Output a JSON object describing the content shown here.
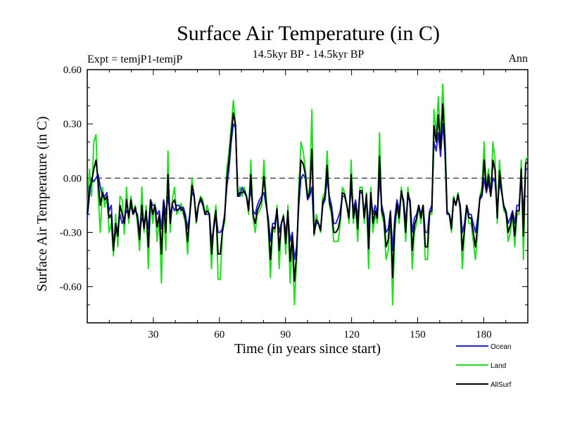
{
  "chart_data": {
    "type": "line",
    "title": "Surface Air Temperature (in C)",
    "subtitle": "14.5kyr BP - 14.5kyr BP",
    "left_annotation": "Expt = temjP1-temjP",
    "right_annotation": "Ann",
    "xlabel": "Time (in years since start)",
    "ylabel": "Surface Air Temperature (in C)",
    "xlim": [
      0,
      200
    ],
    "ylim": [
      -0.8,
      0.6
    ],
    "xticks": [
      30,
      60,
      90,
      120,
      150,
      180
    ],
    "xtick_labels": [
      "30",
      "60",
      "90",
      "120",
      "150",
      "180"
    ],
    "yticks": [
      0.6,
      0.3,
      0.0,
      -0.3,
      -0.6
    ],
    "ytick_labels": [
      "0.60",
      "0.30",
      "0.00",
      "-0.30",
      "-0.60"
    ],
    "zero_line": "dashed",
    "legend_position": "bottom-right",
    "series": [
      {
        "name": "Land",
        "color": "#22dd22",
        "values": [
          -0.18,
          0.05,
          -0.1,
          0.2,
          0.24,
          -0.1,
          -0.3,
          -0.05,
          -0.16,
          -0.1,
          -0.3,
          -0.25,
          -0.43,
          -0.2,
          -0.38,
          -0.1,
          -0.12,
          -0.31,
          -0.05,
          -0.25,
          -0.1,
          -0.2,
          -0.15,
          -0.25,
          -0.4,
          -0.05,
          -0.3,
          -0.15,
          -0.5,
          -0.12,
          -0.25,
          -0.14,
          -0.35,
          -0.22,
          -0.58,
          -0.15,
          -0.4,
          0.15,
          -0.3,
          -0.12,
          -0.05,
          -0.2,
          -0.18,
          -0.14,
          -0.2,
          -0.25,
          -0.42,
          -0.2,
          0.0,
          -0.1,
          -0.25,
          -0.15,
          -0.1,
          -0.12,
          -0.2,
          -0.15,
          -0.2,
          -0.5,
          -0.25,
          -0.15,
          -0.56,
          -0.56,
          -0.3,
          -0.24,
          0.05,
          0.15,
          0.28,
          0.43,
          0.3,
          -0.1,
          -0.05,
          -0.1,
          -0.05,
          -0.1,
          -0.2,
          0.1,
          -0.22,
          -0.3,
          -0.2,
          -0.18,
          -0.15,
          0.1,
          -0.1,
          -0.28,
          -0.55,
          -0.28,
          -0.3,
          -0.15,
          -0.5,
          -0.25,
          -0.2,
          -0.42,
          -0.15,
          -0.58,
          -0.35,
          -0.7,
          -0.45,
          -0.05,
          0.2,
          0.15,
          0.05,
          -0.1,
          -0.05,
          0.38,
          -0.32,
          -0.2,
          -0.25,
          -0.3,
          -0.1,
          -0.08,
          0.15,
          -0.15,
          -0.2,
          -0.35,
          -0.35,
          -0.35,
          -0.25,
          -0.05,
          -0.08,
          -0.15,
          -0.25,
          0.1,
          -0.25,
          -0.15,
          -0.35,
          -0.05,
          -0.05,
          -0.25,
          -0.08,
          -0.5,
          -0.05,
          -0.3,
          -0.2,
          -0.25,
          0.25,
          -0.2,
          -0.25,
          -0.45,
          -0.4,
          -0.2,
          -0.7,
          -0.3,
          -0.15,
          -0.25,
          -0.05,
          -0.15,
          -0.35,
          -0.05,
          -0.15,
          -0.5,
          -0.3,
          -0.25,
          -0.15,
          -0.25,
          -0.15,
          -0.45,
          -0.45,
          -0.2,
          -0.2,
          0.38,
          0.25,
          0.45,
          0.2,
          0.52,
          0.25,
          -0.18,
          -0.2,
          -0.3,
          -0.1,
          -0.15,
          -0.08,
          -0.18,
          -0.5,
          -0.3,
          -0.15,
          -0.25,
          -0.25,
          -0.35,
          -0.45,
          -0.3,
          -0.1,
          -0.05,
          0.2,
          -0.05,
          0.05,
          -0.1,
          0.2,
          0.1,
          -0.25,
          0.1,
          -0.05,
          -0.18,
          -0.2,
          -0.35,
          -0.3,
          -0.2,
          -0.38,
          -0.2,
          -0.2,
          0.1,
          -0.45,
          0.1,
          0.12
        ]
      },
      {
        "name": "Ocean",
        "color": "#2222dd",
        "values": [
          -0.22,
          -0.1,
          0.0,
          -0.02,
          0.0,
          0.02,
          -0.05,
          -0.1,
          -0.1,
          -0.08,
          -0.18,
          -0.15,
          -0.38,
          -0.3,
          -0.28,
          -0.2,
          -0.25,
          -0.22,
          -0.18,
          -0.2,
          -0.15,
          -0.2,
          -0.18,
          -0.2,
          -0.3,
          -0.22,
          -0.25,
          -0.2,
          -0.28,
          -0.12,
          -0.15,
          -0.15,
          -0.2,
          -0.18,
          -0.28,
          -0.12,
          -0.2,
          -0.1,
          -0.2,
          -0.15,
          -0.18,
          -0.15,
          -0.15,
          -0.18,
          -0.16,
          -0.2,
          -0.28,
          -0.2,
          -0.08,
          -0.1,
          -0.22,
          -0.15,
          -0.12,
          -0.15,
          -0.2,
          -0.2,
          -0.2,
          -0.35,
          -0.28,
          -0.2,
          -0.3,
          -0.3,
          -0.28,
          -0.2,
          -0.05,
          0.05,
          0.2,
          0.3,
          0.28,
          -0.1,
          -0.1,
          -0.05,
          -0.08,
          -0.1,
          -0.15,
          -0.05,
          -0.18,
          -0.2,
          -0.15,
          -0.12,
          -0.1,
          -0.08,
          -0.15,
          -0.22,
          -0.35,
          -0.25,
          -0.25,
          -0.18,
          -0.3,
          -0.25,
          -0.22,
          -0.3,
          -0.2,
          -0.35,
          -0.3,
          -0.45,
          -0.38,
          -0.15,
          0.0,
          0.02,
          0.0,
          -0.12,
          -0.1,
          -0.05,
          -0.3,
          -0.25,
          -0.25,
          -0.28,
          -0.15,
          -0.12,
          0.0,
          -0.1,
          -0.15,
          -0.25,
          -0.25,
          -0.22,
          -0.18,
          -0.1,
          -0.1,
          -0.15,
          -0.2,
          -0.05,
          -0.18,
          -0.12,
          -0.22,
          -0.08,
          -0.08,
          -0.2,
          -0.1,
          -0.28,
          -0.1,
          -0.2,
          -0.15,
          -0.2,
          0.0,
          -0.15,
          -0.2,
          -0.3,
          -0.28,
          -0.18,
          -0.4,
          -0.22,
          -0.12,
          -0.18,
          -0.08,
          -0.12,
          -0.25,
          -0.1,
          -0.12,
          -0.3,
          -0.22,
          -0.2,
          -0.15,
          -0.2,
          -0.15,
          -0.3,
          -0.3,
          -0.18,
          -0.15,
          0.2,
          0.15,
          0.25,
          0.12,
          0.3,
          0.15,
          -0.2,
          -0.2,
          -0.25,
          -0.12,
          -0.15,
          -0.1,
          -0.15,
          -0.3,
          -0.25,
          -0.15,
          -0.2,
          -0.2,
          -0.25,
          -0.3,
          -0.22,
          -0.12,
          -0.1,
          0.0,
          -0.08,
          -0.02,
          -0.1,
          0.0,
          -0.02,
          -0.18,
          -0.02,
          -0.08,
          -0.15,
          -0.18,
          -0.25,
          -0.22,
          -0.18,
          -0.25,
          -0.15,
          -0.15,
          0.0,
          -0.2,
          0.05,
          0.05
        ]
      },
      {
        "name": "AllSurf",
        "color": "#000000",
        "values": [
          -0.2,
          -0.05,
          -0.02,
          0.05,
          0.1,
          -0.02,
          -0.15,
          -0.08,
          -0.12,
          -0.1,
          -0.22,
          -0.2,
          -0.4,
          -0.25,
          -0.32,
          -0.15,
          -0.2,
          -0.25,
          -0.12,
          -0.22,
          -0.12,
          -0.2,
          -0.16,
          -0.22,
          -0.34,
          -0.15,
          -0.28,
          -0.18,
          -0.38,
          -0.12,
          -0.2,
          -0.15,
          -0.27,
          -0.2,
          -0.42,
          -0.13,
          -0.3,
          0.02,
          -0.25,
          -0.14,
          -0.12,
          -0.18,
          -0.17,
          -0.16,
          -0.18,
          -0.23,
          -0.35,
          -0.2,
          -0.04,
          -0.1,
          -0.24,
          -0.15,
          -0.11,
          -0.14,
          -0.2,
          -0.18,
          -0.2,
          -0.42,
          -0.27,
          -0.18,
          -0.42,
          -0.42,
          -0.29,
          -0.22,
          0.0,
          0.1,
          0.24,
          0.36,
          0.29,
          -0.1,
          -0.08,
          -0.08,
          -0.07,
          -0.1,
          -0.18,
          0.02,
          -0.2,
          -0.25,
          -0.18,
          -0.15,
          -0.12,
          0.01,
          -0.13,
          -0.25,
          -0.45,
          -0.27,
          -0.28,
          -0.17,
          -0.4,
          -0.25,
          -0.21,
          -0.36,
          -0.18,
          -0.46,
          -0.32,
          -0.57,
          -0.42,
          -0.1,
          0.1,
          0.08,
          0.02,
          -0.11,
          -0.08,
          0.16,
          -0.31,
          -0.23,
          -0.25,
          -0.29,
          -0.13,
          -0.1,
          0.07,
          -0.13,
          -0.18,
          -0.3,
          -0.3,
          -0.28,
          -0.22,
          -0.08,
          -0.09,
          -0.15,
          -0.22,
          0.02,
          -0.22,
          -0.14,
          -0.28,
          -0.07,
          -0.07,
          -0.22,
          -0.09,
          -0.39,
          -0.08,
          -0.25,
          -0.18,
          -0.22,
          0.12,
          -0.18,
          -0.22,
          -0.38,
          -0.34,
          -0.19,
          -0.55,
          -0.26,
          -0.14,
          -0.22,
          -0.07,
          -0.14,
          -0.3,
          -0.08,
          -0.14,
          -0.4,
          -0.26,
          -0.22,
          -0.15,
          -0.22,
          -0.15,
          -0.38,
          -0.38,
          -0.19,
          -0.18,
          0.29,
          0.2,
          0.35,
          0.16,
          0.41,
          0.2,
          -0.19,
          -0.2,
          -0.28,
          -0.11,
          -0.15,
          -0.09,
          -0.16,
          -0.4,
          -0.28,
          -0.15,
          -0.22,
          -0.22,
          -0.3,
          -0.38,
          -0.26,
          -0.11,
          -0.08,
          0.1,
          -0.07,
          0.02,
          -0.1,
          0.1,
          0.04,
          -0.22,
          0.04,
          -0.07,
          -0.16,
          -0.19,
          -0.3,
          -0.26,
          -0.19,
          -0.32,
          -0.18,
          -0.18,
          0.05,
          -0.32,
          0.08,
          0.09
        ]
      }
    ]
  }
}
